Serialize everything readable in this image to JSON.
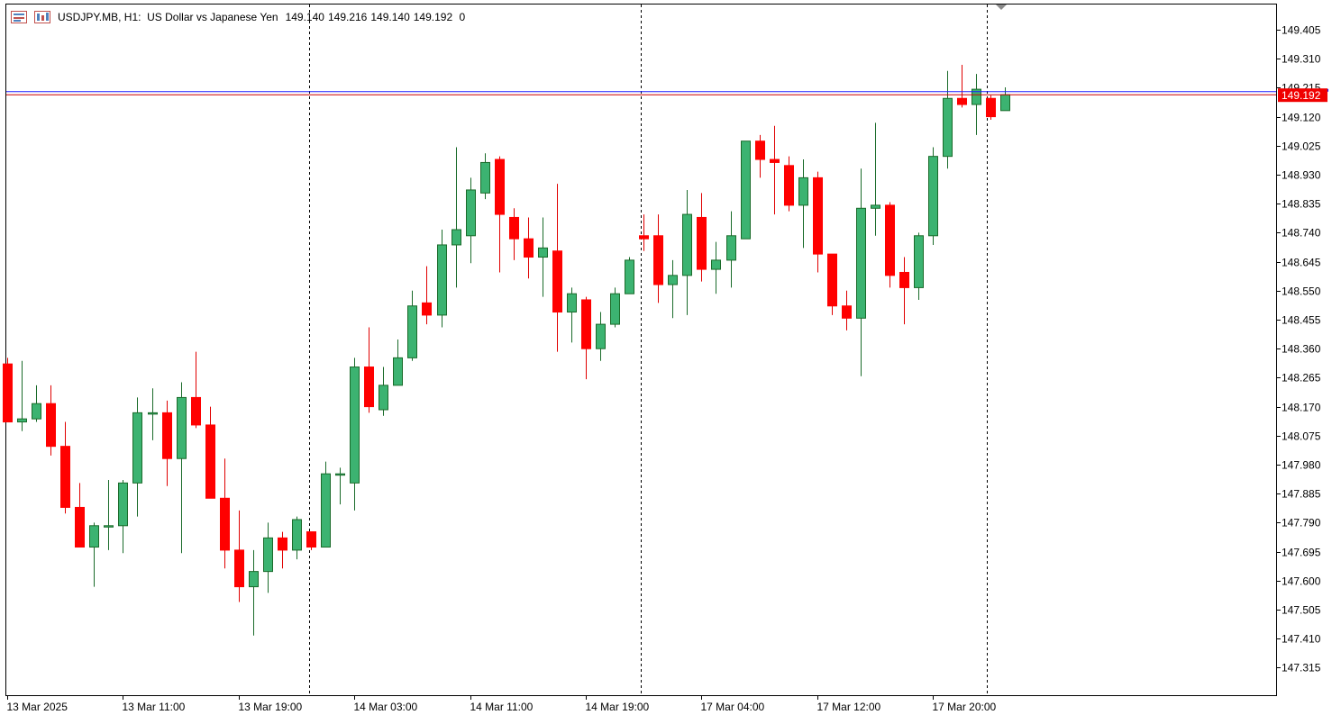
{
  "header": {
    "symbol_title": "USDJPY.MB, H1:  US Dollar vs Japanese Yen",
    "open": "149.140",
    "high": "149.216",
    "low": "149.140",
    "close": "149.192",
    "volume": "0",
    "icons": [
      "chart-menu-icon",
      "one-click-trading-icon"
    ]
  },
  "price_tag": {
    "label": "149.192",
    "background_color": "#f00000",
    "text_color": "#ffffff"
  },
  "colors": {
    "bull_candle": "#3cb371",
    "bear_candle": "#ff0000",
    "wick_bull": "#1a6b2a",
    "wick_bear": "#e00000",
    "bid_line": "#cc0000",
    "ask_line": "#1a1aff",
    "axis": "#000000",
    "grid": "#000000"
  },
  "chart_data": {
    "type": "candlestick",
    "symbol": "USDJPY.MB",
    "timeframe": "H1",
    "y_tick_labels": [
      "149.405",
      "149.310",
      "149.215",
      "149.120",
      "149.025",
      "148.930",
      "148.835",
      "148.740",
      "148.645",
      "148.550",
      "148.455",
      "148.360",
      "148.265",
      "148.170",
      "148.075",
      "147.980",
      "147.885",
      "147.790",
      "147.695",
      "147.600",
      "147.505",
      "147.410",
      "147.315"
    ],
    "x_tick_labels": [
      "13 Mar 2025",
      "13 Mar 11:00",
      "13 Mar 19:00",
      "14 Mar 03:00",
      "14 Mar 11:00",
      "14 Mar 19:00",
      "17 Mar 04:00",
      "17 Mar 12:00",
      "17 Mar 20:00"
    ],
    "ylim": [
      147.225,
      149.488
    ],
    "bid_price": 149.192,
    "ask_price": 149.202,
    "day_separators": [
      "13 Mar 2025 21:00",
      "14 Mar 2025 20:00",
      "17 Mar 2025 21:00"
    ],
    "candles": [
      {
        "o": 148.31,
        "h": 148.33,
        "l": 148.12,
        "c": 148.12
      },
      {
        "o": 148.12,
        "h": 148.32,
        "l": 148.09,
        "c": 148.13
      },
      {
        "o": 148.13,
        "h": 148.24,
        "l": 148.12,
        "c": 148.18
      },
      {
        "o": 148.18,
        "h": 148.24,
        "l": 148.01,
        "c": 148.04
      },
      {
        "o": 148.04,
        "h": 148.12,
        "l": 147.82,
        "c": 147.84
      },
      {
        "o": 147.84,
        "h": 147.92,
        "l": 147.71,
        "c": 147.71
      },
      {
        "o": 147.71,
        "h": 147.79,
        "l": 147.58,
        "c": 147.78
      },
      {
        "o": 147.78,
        "h": 147.93,
        "l": 147.7,
        "c": 147.78
      },
      {
        "o": 147.78,
        "h": 147.93,
        "l": 147.69,
        "c": 147.92
      },
      {
        "o": 147.92,
        "h": 148.2,
        "l": 147.81,
        "c": 148.15
      },
      {
        "o": 148.15,
        "h": 148.23,
        "l": 148.06,
        "c": 148.15
      },
      {
        "o": 148.15,
        "h": 148.19,
        "l": 147.91,
        "c": 148.0
      },
      {
        "o": 148.0,
        "h": 148.25,
        "l": 147.69,
        "c": 148.2
      },
      {
        "o": 148.2,
        "h": 148.35,
        "l": 148.1,
        "c": 148.11
      },
      {
        "o": 148.11,
        "h": 148.17,
        "l": 147.88,
        "c": 147.87
      },
      {
        "o": 147.87,
        "h": 148.0,
        "l": 147.64,
        "c": 147.7
      },
      {
        "o": 147.7,
        "h": 147.83,
        "l": 147.53,
        "c": 147.58
      },
      {
        "o": 147.58,
        "h": 147.7,
        "l": 147.42,
        "c": 147.63
      },
      {
        "o": 147.63,
        "h": 147.79,
        "l": 147.56,
        "c": 147.74
      },
      {
        "o": 147.74,
        "h": 147.76,
        "l": 147.64,
        "c": 147.7
      },
      {
        "o": 147.7,
        "h": 147.81,
        "l": 147.67,
        "c": 147.8
      },
      {
        "o": 147.76,
        "h": 147.76,
        "l": 147.7,
        "c": 147.71
      },
      {
        "o": 147.71,
        "h": 147.99,
        "l": 147.71,
        "c": 147.95
      },
      {
        "o": 147.95,
        "h": 147.97,
        "l": 147.85,
        "c": 147.95
      },
      {
        "o": 147.92,
        "h": 148.33,
        "l": 147.83,
        "c": 148.3
      },
      {
        "o": 148.3,
        "h": 148.43,
        "l": 148.15,
        "c": 148.17
      },
      {
        "o": 148.16,
        "h": 148.3,
        "l": 148.14,
        "c": 148.24
      },
      {
        "o": 148.24,
        "h": 148.39,
        "l": 148.24,
        "c": 148.33
      },
      {
        "o": 148.33,
        "h": 148.55,
        "l": 148.32,
        "c": 148.5
      },
      {
        "o": 148.51,
        "h": 148.63,
        "l": 148.44,
        "c": 148.47
      },
      {
        "o": 148.47,
        "h": 148.75,
        "l": 148.43,
        "c": 148.7
      },
      {
        "o": 148.7,
        "h": 149.02,
        "l": 148.56,
        "c": 148.75
      },
      {
        "o": 148.73,
        "h": 148.92,
        "l": 148.64,
        "c": 148.88
      },
      {
        "o": 148.87,
        "h": 149.0,
        "l": 148.85,
        "c": 148.97
      },
      {
        "o": 148.98,
        "h": 148.99,
        "l": 148.61,
        "c": 148.8
      },
      {
        "o": 148.79,
        "h": 148.82,
        "l": 148.65,
        "c": 148.72
      },
      {
        "o": 148.72,
        "h": 148.79,
        "l": 148.59,
        "c": 148.66
      },
      {
        "o": 148.66,
        "h": 148.79,
        "l": 148.53,
        "c": 148.69
      },
      {
        "o": 148.68,
        "h": 148.9,
        "l": 148.35,
        "c": 148.48
      },
      {
        "o": 148.48,
        "h": 148.56,
        "l": 148.38,
        "c": 148.54
      },
      {
        "o": 148.52,
        "h": 148.53,
        "l": 148.26,
        "c": 148.36
      },
      {
        "o": 148.36,
        "h": 148.48,
        "l": 148.32,
        "c": 148.44
      },
      {
        "o": 148.44,
        "h": 148.56,
        "l": 148.43,
        "c": 148.54
      },
      {
        "o": 148.54,
        "h": 148.66,
        "l": 148.54,
        "c": 148.65
      },
      {
        "o": 148.73,
        "h": 148.8,
        "l": 148.68,
        "c": 148.72
      },
      {
        "o": 148.73,
        "h": 148.8,
        "l": 148.51,
        "c": 148.57
      },
      {
        "o": 148.57,
        "h": 148.65,
        "l": 148.46,
        "c": 148.6
      },
      {
        "o": 148.6,
        "h": 148.88,
        "l": 148.47,
        "c": 148.8
      },
      {
        "o": 148.79,
        "h": 148.87,
        "l": 148.58,
        "c": 148.62
      },
      {
        "o": 148.62,
        "h": 148.71,
        "l": 148.54,
        "c": 148.65
      },
      {
        "o": 148.65,
        "h": 148.81,
        "l": 148.56,
        "c": 148.73
      },
      {
        "o": 148.72,
        "h": 149.04,
        "l": 148.72,
        "c": 149.04
      },
      {
        "o": 149.04,
        "h": 149.06,
        "l": 148.92,
        "c": 148.98
      },
      {
        "o": 148.98,
        "h": 149.09,
        "l": 148.8,
        "c": 148.97
      },
      {
        "o": 148.96,
        "h": 148.99,
        "l": 148.81,
        "c": 148.83
      },
      {
        "o": 148.83,
        "h": 148.98,
        "l": 148.69,
        "c": 148.92
      },
      {
        "o": 148.92,
        "h": 148.94,
        "l": 148.61,
        "c": 148.67
      },
      {
        "o": 148.67,
        "h": 148.67,
        "l": 148.47,
        "c": 148.5
      },
      {
        "o": 148.5,
        "h": 148.55,
        "l": 148.42,
        "c": 148.46
      },
      {
        "o": 148.46,
        "h": 148.95,
        "l": 148.27,
        "c": 148.82
      },
      {
        "o": 148.82,
        "h": 149.1,
        "l": 148.73,
        "c": 148.83
      },
      {
        "o": 148.83,
        "h": 148.84,
        "l": 148.56,
        "c": 148.6
      },
      {
        "o": 148.61,
        "h": 148.66,
        "l": 148.44,
        "c": 148.56
      },
      {
        "o": 148.56,
        "h": 148.74,
        "l": 148.52,
        "c": 148.73
      },
      {
        "o": 148.73,
        "h": 149.02,
        "l": 148.7,
        "c": 148.99
      },
      {
        "o": 148.99,
        "h": 149.27,
        "l": 148.95,
        "c": 149.18
      },
      {
        "o": 149.18,
        "h": 149.29,
        "l": 149.15,
        "c": 149.16
      },
      {
        "o": 149.16,
        "h": 149.26,
        "l": 149.06,
        "c": 149.21
      },
      {
        "o": 149.18,
        "h": 149.19,
        "l": 149.11,
        "c": 149.12
      },
      {
        "o": 149.14,
        "h": 149.216,
        "l": 149.14,
        "c": 149.192
      }
    ]
  }
}
